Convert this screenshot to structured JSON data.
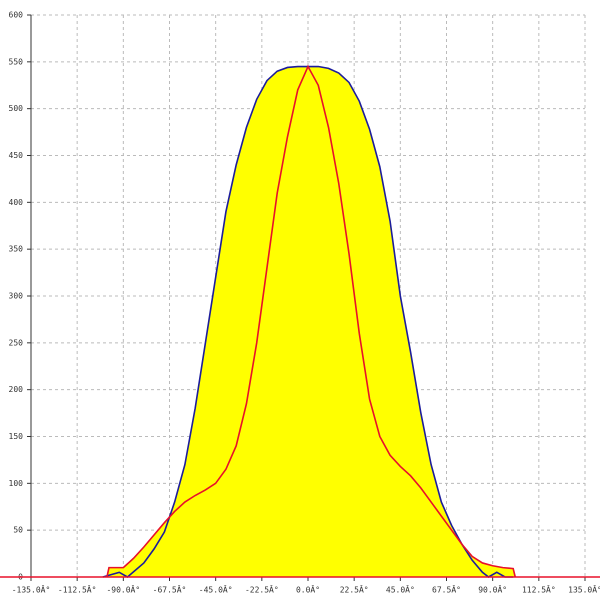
{
  "chart_data": {
    "type": "line",
    "fill": "#ffff00",
    "grid": true,
    "xlim": [
      -135,
      135
    ],
    "ylim": [
      0,
      600
    ],
    "xticks": [
      {
        "value": -135,
        "label": "-135.0Â°"
      },
      {
        "value": -112.5,
        "label": "-112.5Â°"
      },
      {
        "value": -90,
        "label": "-90.0Â°"
      },
      {
        "value": -67.5,
        "label": "-67.5Â°"
      },
      {
        "value": -45,
        "label": "-45.0Â°"
      },
      {
        "value": -22.5,
        "label": "-22.5Â°"
      },
      {
        "value": 0,
        "label": "0.0Â°"
      },
      {
        "value": 22.5,
        "label": "22.5Â°"
      },
      {
        "value": 45,
        "label": "45.0Â°"
      },
      {
        "value": 67.5,
        "label": "67.5Â°"
      },
      {
        "value": 90,
        "label": "90.0Â°"
      },
      {
        "value": 112.5,
        "label": "112.5Â°"
      },
      {
        "value": 135,
        "label": "135.0Â°"
      }
    ],
    "yticks": [
      0,
      50,
      100,
      150,
      200,
      250,
      300,
      350,
      400,
      450,
      500,
      550,
      600
    ],
    "series": [
      {
        "color": "#1c1c9c",
        "x": [
          -100,
          -92,
          -88,
          -80,
          -75,
          -70,
          -65,
          -60,
          -55,
          -50,
          -45,
          -40,
          -35,
          -30,
          -25,
          -20,
          -15,
          -10,
          -5,
          0,
          5,
          10,
          15,
          20,
          25,
          30,
          35,
          40,
          45,
          50,
          55,
          60,
          65,
          70,
          75,
          80,
          85,
          88,
          92,
          96,
          100
        ],
        "values": [
          0,
          5,
          0,
          15,
          30,
          48,
          80,
          120,
          180,
          250,
          320,
          390,
          440,
          480,
          510,
          530,
          540,
          544,
          545,
          545,
          545,
          543,
          538,
          528,
          508,
          478,
          438,
          380,
          300,
          240,
          175,
          120,
          80,
          55,
          35,
          18,
          5,
          0,
          5,
          0,
          0
        ]
      },
      {
        "color": "#e8102a",
        "x": [
          -98,
          -97,
          -90,
          -85,
          -80,
          -75,
          -70,
          -65,
          -60,
          -55,
          -50,
          -45,
          -40,
          -35,
          -30,
          -25,
          -20,
          -15,
          -10,
          -5,
          0,
          5,
          10,
          15,
          20,
          25,
          30,
          35,
          40,
          45,
          50,
          55,
          60,
          65,
          70,
          75,
          80,
          85,
          90,
          95,
          100,
          101
        ],
        "values": [
          0,
          10,
          10,
          20,
          32,
          45,
          58,
          70,
          80,
          87,
          93,
          100,
          115,
          140,
          185,
          250,
          330,
          410,
          470,
          520,
          545,
          525,
          480,
          420,
          345,
          260,
          190,
          150,
          130,
          118,
          108,
          95,
          80,
          65,
          50,
          35,
          22,
          15,
          12,
          10,
          9,
          0
        ]
      }
    ]
  }
}
